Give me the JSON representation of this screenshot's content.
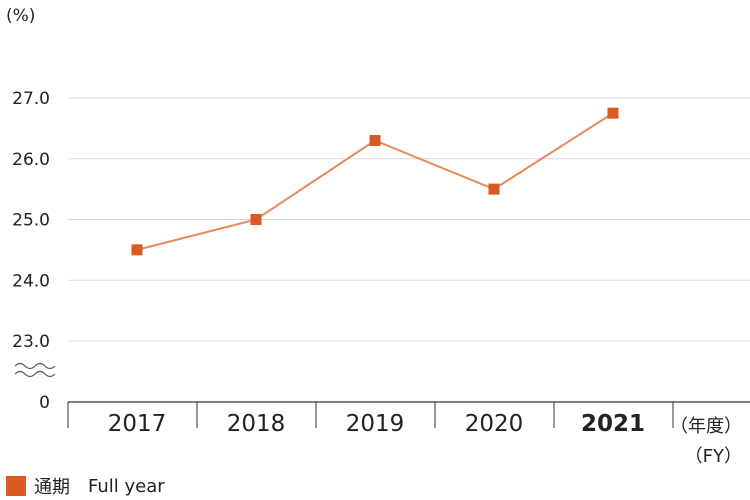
{
  "unit": "(%)",
  "x_suffix_jp": "（年度）",
  "x_suffix_en": "（FY）",
  "legend": {
    "label_jp": "通期",
    "label_en": "Full year"
  },
  "colors": {
    "line": "#e8895a",
    "marker": "#d95a22",
    "grid": "#d9d9d9",
    "axis": "#333333"
  },
  "chart_data": {
    "type": "line",
    "categories": [
      "2017",
      "2018",
      "2019",
      "2020",
      "2021"
    ],
    "series": [
      {
        "values": [
          24.5,
          25.0,
          26.3,
          25.5,
          26.75
        ]
      }
    ],
    "highlight_category": "2021",
    "y_ticks": [
      "27.0",
      "26.0",
      "25.0",
      "24.0",
      "23.0",
      "0"
    ],
    "ylim": [
      23.0,
      27.0
    ],
    "axis_break": true,
    "grid": true,
    "legend_position": "bottom-left"
  }
}
